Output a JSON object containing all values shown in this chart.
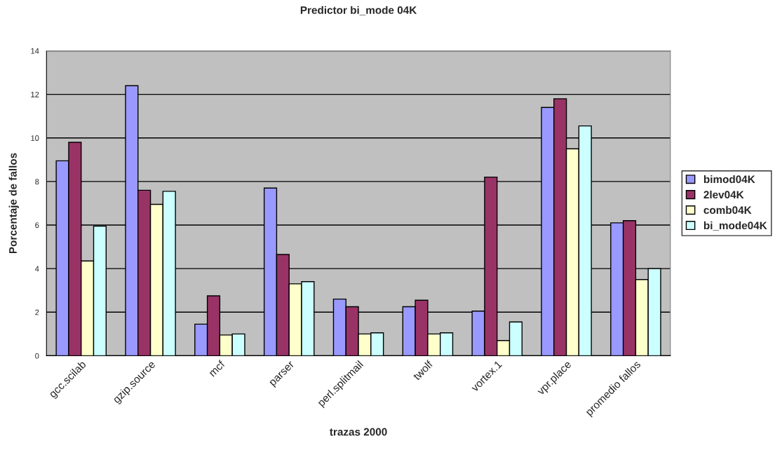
{
  "chart_data": {
    "type": "bar",
    "title": "Predictor bi_mode 04K",
    "xlabel": "trazas 2000",
    "ylabel": "Porcentaje de fallos",
    "categories": [
      "gcc.scilab",
      "gzip.source",
      "mcf",
      "parser",
      "perl.splitmail",
      "twolf",
      "vortex.1",
      "vpr.place",
      "promedio fallos"
    ],
    "series": [
      {
        "name": "bimod04K",
        "color": "#9999ff",
        "values": [
          8.95,
          12.4,
          1.45,
          7.7,
          2.6,
          2.25,
          2.05,
          11.4,
          6.1
        ]
      },
      {
        "name": "2lev04K",
        "color": "#993366",
        "values": [
          9.8,
          7.6,
          2.75,
          4.65,
          2.25,
          2.55,
          8.2,
          11.8,
          6.2
        ]
      },
      {
        "name": "comb04K",
        "color": "#ffffcc",
        "values": [
          4.35,
          6.95,
          0.95,
          3.3,
          1.0,
          1.0,
          0.7,
          9.5,
          3.5
        ]
      },
      {
        "name": "bi_mode04K",
        "color": "#ccffff",
        "values": [
          5.95,
          7.55,
          1.0,
          3.4,
          1.05,
          1.05,
          1.55,
          10.55,
          4.0
        ]
      }
    ],
    "ylim": [
      0,
      14
    ],
    "yticks": [
      0,
      2,
      4,
      6,
      8,
      10,
      12,
      14
    ],
    "grid": "y",
    "legend": "right"
  }
}
